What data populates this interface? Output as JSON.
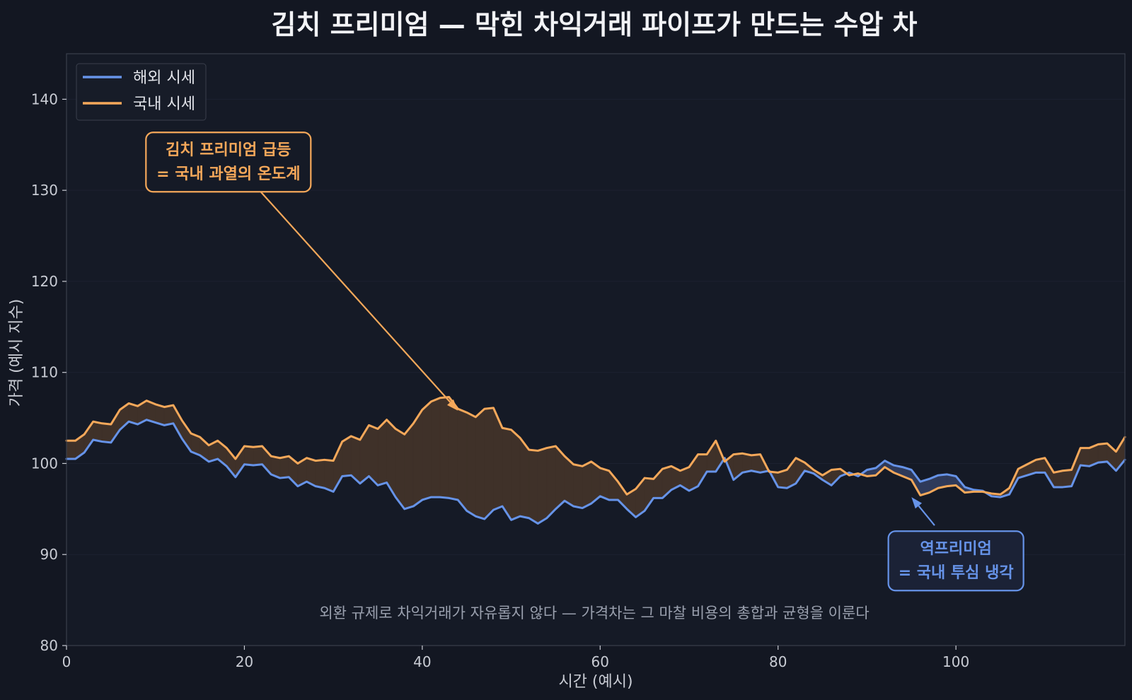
{
  "title": "김치 프리미엄 — 막힌 차익거래 파이프가 만드는 수압 차",
  "colors": {
    "background": "#131722",
    "plot_bg": "#151a26",
    "overseas": "#6693e8",
    "domestic": "#f5a85a",
    "fill_premium": "#3f3129",
    "fill_discount": "#2f3a5a",
    "text": "#e8eaf0",
    "muted": "#9aa0ae"
  },
  "chart_data": {
    "type": "line",
    "xlabel": "시간 (예시)",
    "ylabel": "가격 (예시 지수)",
    "xlim": [
      0,
      119
    ],
    "ylim": [
      80,
      145
    ],
    "x_ticks": [
      0,
      20,
      40,
      60,
      80,
      100
    ],
    "y_ticks": [
      80,
      90,
      100,
      110,
      120,
      130,
      140
    ],
    "grid": true,
    "legend": "top-left",
    "x": [
      0,
      1,
      2,
      3,
      4,
      5,
      6,
      7,
      8,
      9,
      10,
      11,
      12,
      13,
      14,
      15,
      16,
      17,
      18,
      19,
      20,
      21,
      22,
      23,
      24,
      25,
      26,
      27,
      28,
      29,
      30,
      31,
      32,
      33,
      34,
      35,
      36,
      37,
      38,
      39,
      40,
      41,
      42,
      43,
      44,
      45,
      46,
      47,
      48,
      49,
      50,
      51,
      52,
      53,
      54,
      55,
      56,
      57,
      58,
      59,
      60,
      61,
      62,
      63,
      64,
      65,
      66,
      67,
      68,
      69,
      70,
      71,
      72,
      73,
      74,
      75,
      76,
      77,
      78,
      79,
      80,
      81,
      82,
      83,
      84,
      85,
      86,
      87,
      88,
      89,
      90,
      91,
      92,
      93,
      94,
      95,
      96,
      97,
      98,
      99,
      100,
      101,
      102,
      103,
      104,
      105,
      106,
      107,
      108,
      109,
      110,
      111,
      112,
      113,
      114,
      115,
      116,
      117,
      118,
      119
    ],
    "series": [
      {
        "name": "해외 시세",
        "values": [
          100.5,
          100.5,
          101.2,
          102.6,
          102.4,
          102.3,
          103.7,
          104.6,
          104.3,
          104.8,
          104.5,
          104.2,
          104.4,
          102.7,
          101.3,
          100.9,
          100.2,
          100.5,
          99.7,
          98.5,
          99.9,
          99.8,
          99.9,
          98.8,
          98.4,
          98.5,
          97.5,
          98.0,
          97.5,
          97.3,
          96.9,
          98.6,
          98.7,
          97.8,
          98.6,
          97.6,
          97.9,
          96.3,
          95.0,
          95.3,
          96.0,
          96.3,
          96.3,
          96.2,
          96.0,
          94.8,
          94.2,
          93.9,
          94.9,
          95.3,
          93.8,
          94.2,
          94.0,
          93.4,
          94.0,
          95.0,
          95.9,
          95.3,
          95.1,
          95.6,
          96.4,
          96.0,
          96.0,
          95.0,
          94.1,
          94.8,
          96.2,
          96.2,
          97.1,
          97.6,
          97.0,
          97.5,
          99.1,
          99.1,
          100.6,
          98.2,
          99.0,
          99.2,
          99.0,
          99.2,
          97.4,
          97.3,
          97.8,
          99.2,
          98.9,
          98.2,
          97.6,
          98.6,
          99.0,
          98.6,
          99.3,
          99.5,
          100.3,
          99.8,
          99.6,
          99.3,
          98.0,
          98.3,
          98.7,
          98.8,
          98.6,
          97.4,
          97.1,
          97.0,
          96.4,
          96.3,
          96.6,
          98.4,
          98.7,
          99.0,
          99.0,
          97.4,
          97.4,
          97.5,
          99.8,
          99.7,
          100.1,
          100.2,
          99.2,
          100.4
        ]
      },
      {
        "name": "국내 시세",
        "values": [
          102.5,
          102.5,
          103.2,
          104.6,
          104.4,
          104.3,
          105.9,
          106.6,
          106.3,
          106.9,
          106.5,
          106.2,
          106.4,
          104.7,
          103.3,
          102.9,
          102.0,
          102.5,
          101.7,
          100.5,
          101.9,
          101.8,
          101.9,
          100.8,
          100.6,
          100.8,
          100.0,
          100.6,
          100.3,
          100.4,
          100.3,
          102.4,
          103.0,
          102.6,
          104.2,
          103.8,
          104.8,
          103.8,
          103.2,
          104.4,
          105.9,
          106.8,
          107.2,
          107.3,
          106.0,
          105.6,
          105.1,
          106.0,
          106.1,
          103.9,
          103.7,
          102.8,
          101.5,
          101.4,
          101.7,
          101.9,
          100.8,
          99.9,
          99.7,
          100.2,
          99.5,
          99.2,
          98.0,
          96.6,
          97.2,
          98.4,
          98.3,
          99.4,
          99.7,
          99.2,
          99.6,
          101.0,
          101.0,
          102.5,
          100.2,
          101.0,
          101.1,
          100.9,
          101.0,
          99.1,
          99.0,
          99.3,
          100.6,
          100.1,
          99.3,
          98.7,
          99.3,
          99.4,
          98.7,
          98.9,
          98.6,
          98.7,
          99.6,
          99.0,
          98.6,
          98.2,
          96.5,
          96.8,
          97.3,
          97.5,
          97.6,
          96.8,
          96.9,
          96.9,
          96.7,
          96.6,
          97.3,
          99.4,
          99.9,
          100.4,
          100.6,
          99.0,
          99.2,
          99.3,
          101.7,
          101.7,
          102.1,
          102.2,
          101.3,
          102.9
        ]
      }
    ],
    "annotations": [
      {
        "text": [
          "김치 프리미엄 급등",
          "= 국내 과열의 온도계"
        ],
        "target_x": 44,
        "target_y": 105.8,
        "box_x": 18.2,
        "box_y": 133.1,
        "tail_x": 21.5,
        "tail_y": 130.2,
        "color": "domestic"
      },
      {
        "text": [
          "역프리미엄",
          "= 국내 투심 냉각"
        ],
        "target_x": 95,
        "target_y": 96.3,
        "box_x": 100.0,
        "box_y": 89.3,
        "tail_x": 97.6,
        "tail_y": 93.2,
        "color": "overseas"
      }
    ],
    "footnote": "외환 규제로 차익거래가 자유롭지 않다 — 가격차는 그 마찰 비용의 총합과 균형을 이룬다"
  }
}
